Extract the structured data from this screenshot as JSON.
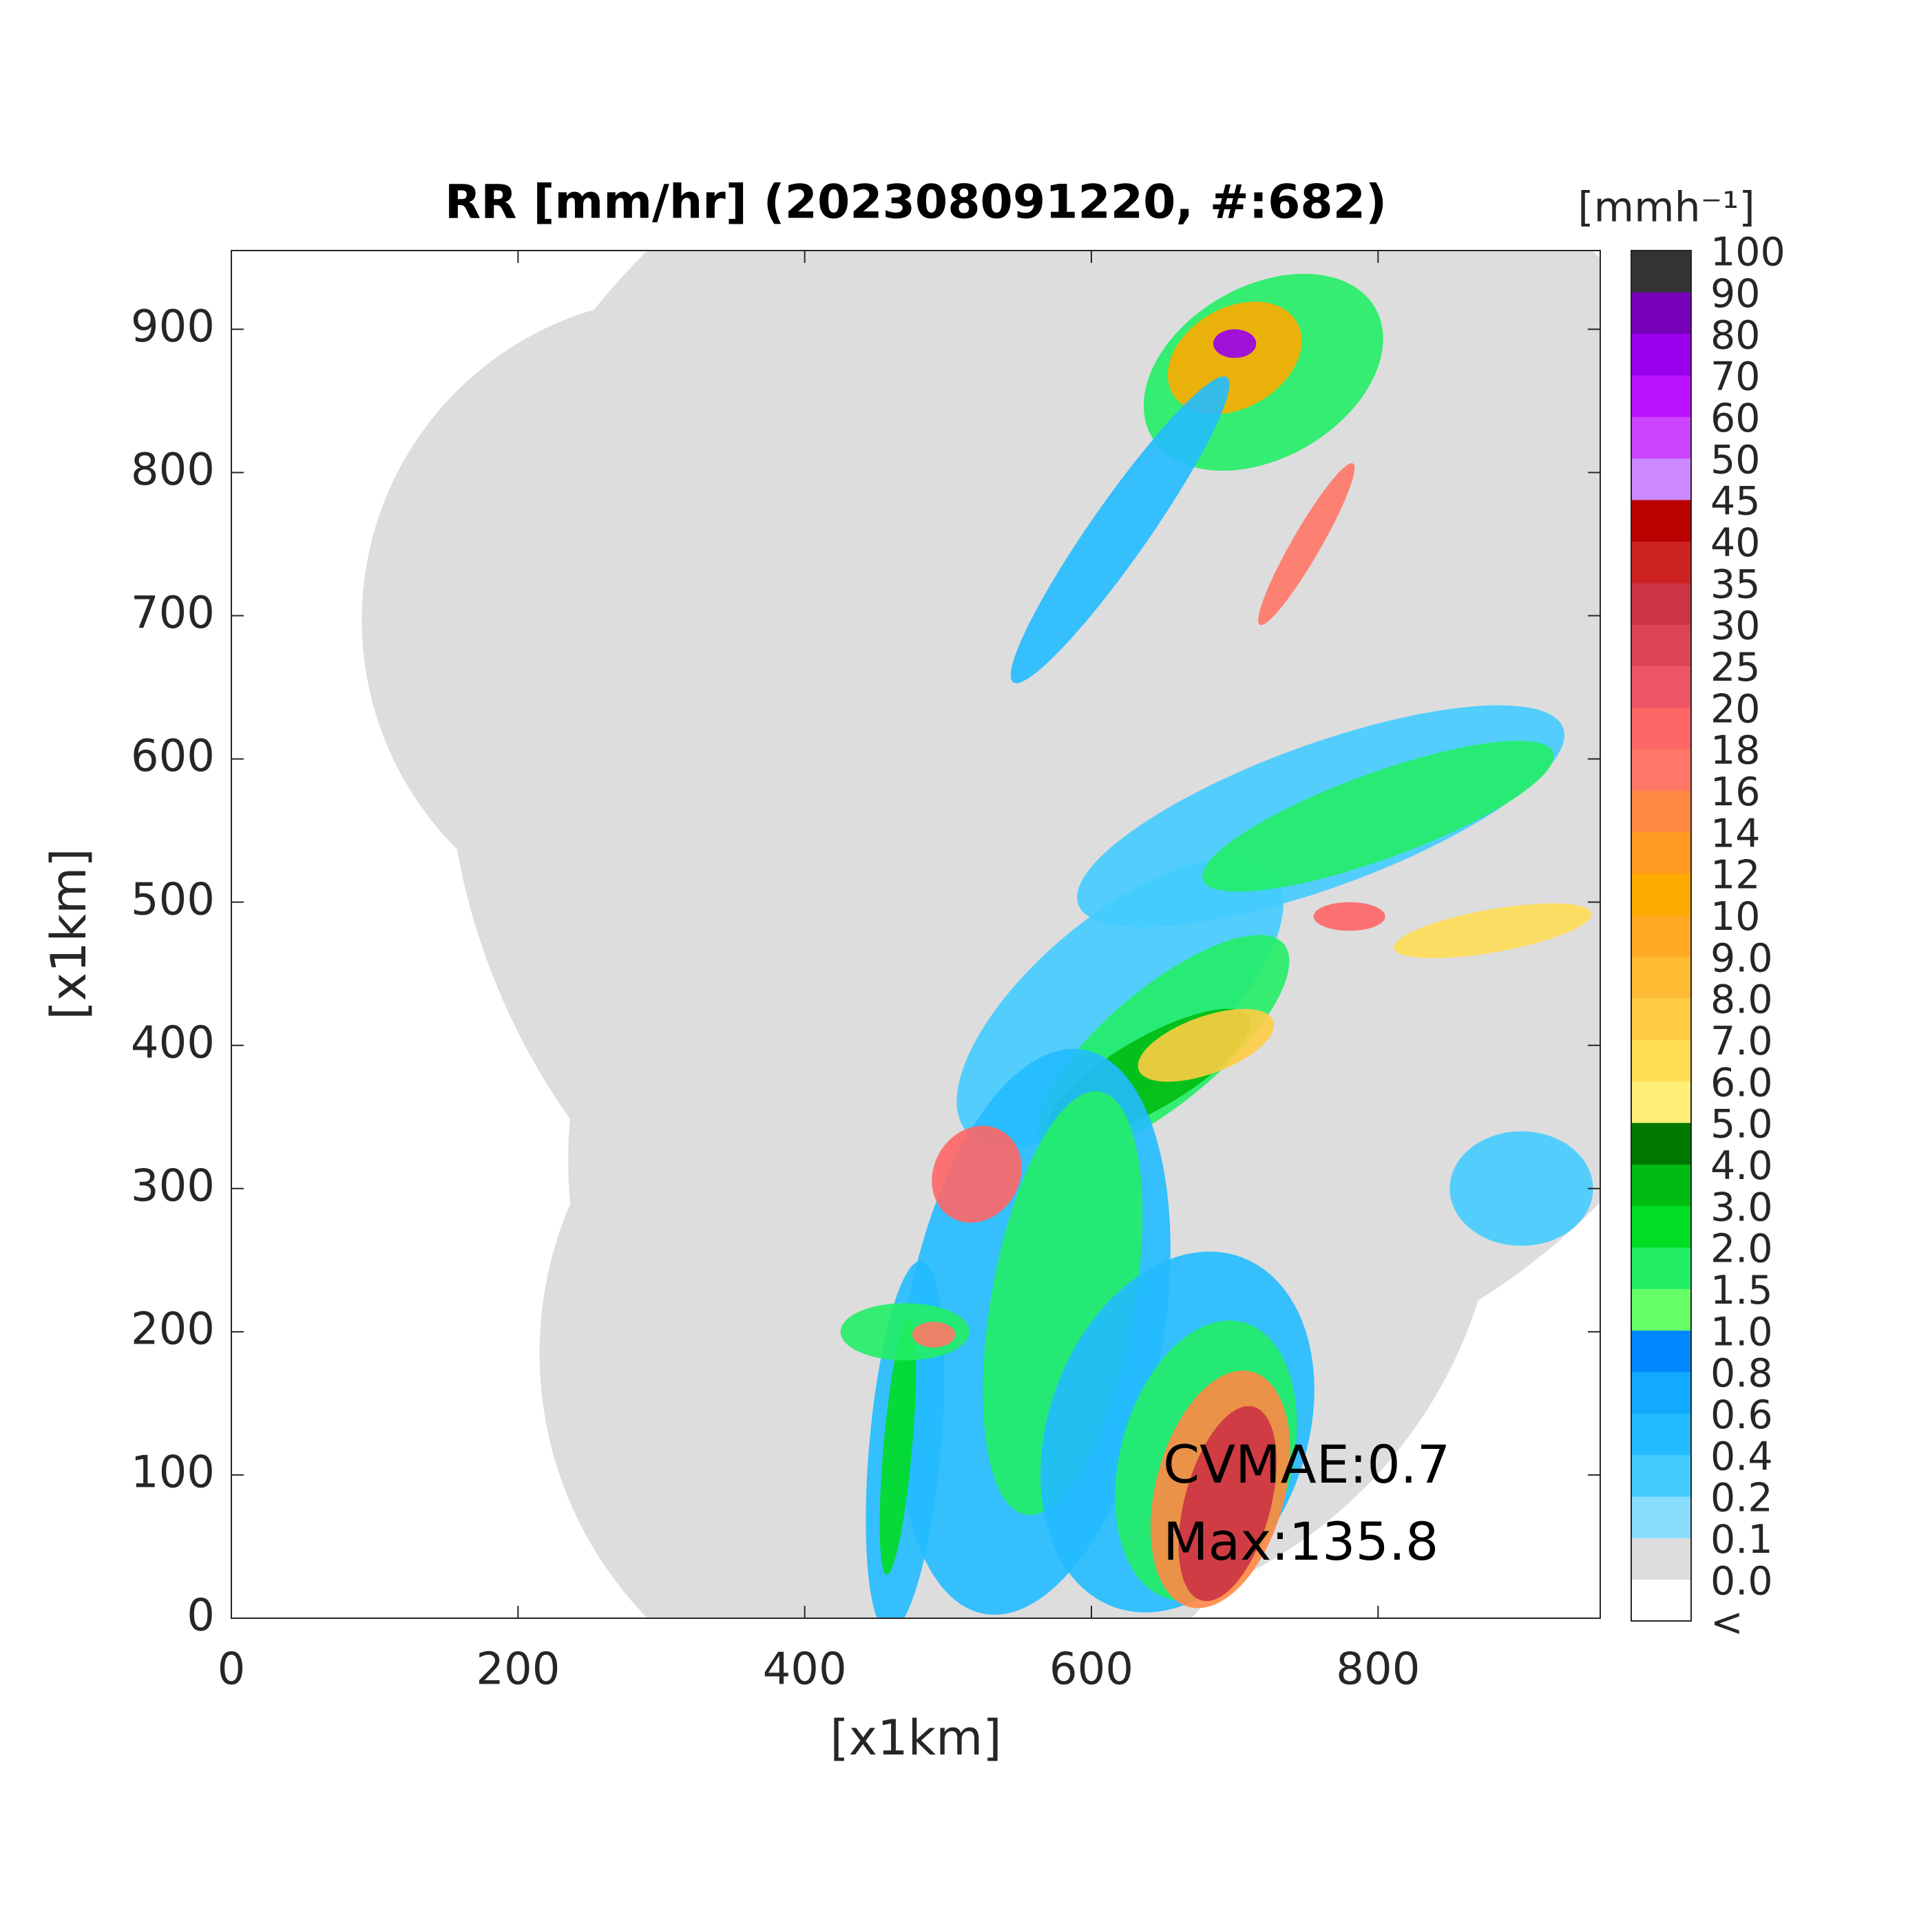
{
  "chart_data": {
    "type": "map",
    "title": "RR [mm/hr] (202308091220, #:682)",
    "x_label": "[x1km]",
    "y_label": "[x1km]",
    "xlim": [
      0,
      955
    ],
    "ylim": [
      0,
      955
    ],
    "xticks": [
      0,
      200,
      400,
      600,
      800
    ],
    "yticks": [
      0,
      100,
      200,
      300,
      400,
      500,
      600,
      700,
      800,
      900
    ],
    "annotations": [
      "CVMAE:0.7",
      "Max:135.8"
    ],
    "colorbar": {
      "label": "[mmh⁻¹]",
      "levels": [
        "<",
        "0.0",
        "0.1",
        "0.2",
        "0.4",
        "0.6",
        "0.8",
        "1.0",
        "1.5",
        "2.0",
        "3.0",
        "4.0",
        "5.0",
        "6.0",
        "7.0",
        "8.0",
        "9.0",
        "10",
        "12",
        "14",
        "16",
        "18",
        "20",
        "25",
        "30",
        "35",
        "40",
        "45",
        "50",
        "60",
        "70",
        "80",
        "90",
        "100"
      ],
      "colors": [
        "#ffffff",
        "#dddddd",
        "#88ddff",
        "#44ccff",
        "#22bbff",
        "#11aaff",
        "#0088ff",
        "#66ff66",
        "#22ee66",
        "#00dd22",
        "#00bb11",
        "#007700",
        "#ffee77",
        "#ffdd55",
        "#ffcc44",
        "#ffbb33",
        "#ffaa22",
        "#ffaa00",
        "#ff9922",
        "#ff8844",
        "#ff7766",
        "#ff6666",
        "#ee5566",
        "#dd4455",
        "#cc3344",
        "#cc2222",
        "#bb0000",
        "#cc88ff",
        "#cc44ff",
        "#bb11ff",
        "#9900ee",
        "#7700bb",
        "#333333"
      ]
    }
  }
}
